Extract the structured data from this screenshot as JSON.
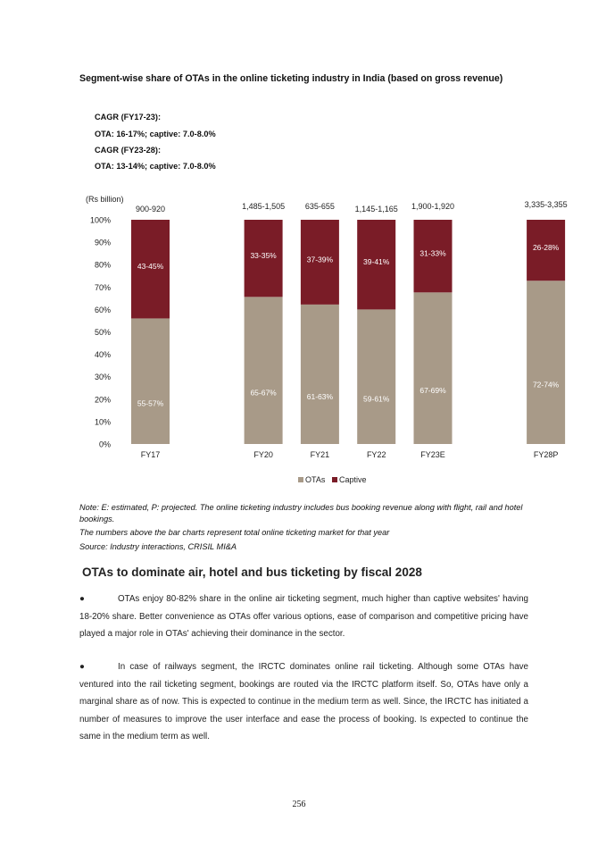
{
  "title": "Segment-wise share of OTAs in the online ticketing industry in India (based on gross revenue)",
  "cagr_lines": [
    "CAGR (FY17-23):",
    "OTA: 16-17%; captive: 7.0-8.0%",
    "CAGR (FY23-28):",
    "OTA: 13-14%; captive: 7.0-8.0%"
  ],
  "chart_data": {
    "type": "bar",
    "stacked": true,
    "unit_label": "(Rs billion)",
    "categories": [
      "FY17",
      "FY20",
      "FY21",
      "FY22",
      "FY23E",
      "FY28P"
    ],
    "totals": [
      "900-920",
      "1,485-1,505",
      "635-655",
      "1,145-1,165",
      "1,900-1,920",
      "3,335-3,355"
    ],
    "series": [
      {
        "name": "OTAs",
        "color": "#a89a88",
        "values": [
          56,
          65.6,
          62.2,
          60,
          67.6,
          72.8
        ],
        "labels": [
          "55-57%",
          "65-67%",
          "61-63%",
          "59-61%",
          "67-69%",
          "72-74%"
        ]
      },
      {
        "name": "Captive",
        "color": "#7a1c27",
        "values": [
          44,
          34.4,
          37.8,
          40,
          32.4,
          27.2
        ],
        "labels": [
          "43-45%",
          "33-35%",
          "37-39%",
          "39-41%",
          "31-33%",
          "26-28%"
        ]
      }
    ],
    "yticks": [
      "0%",
      "10%",
      "20%",
      "30%",
      "40%",
      "50%",
      "60%",
      "70%",
      "80%",
      "90%",
      "100%"
    ],
    "ylim": [
      0,
      100
    ],
    "legend": "bottom-center"
  },
  "notes": [
    "Note: E: estimated, P: projected. The online ticketing industry includes bus booking revenue along with flight, rail and hotel bookings.",
    "The numbers above the bar charts represent total online ticketing market for that year",
    "Source: Industry interactions, CRISIL MI&A"
  ],
  "heading": "OTAs to dominate air, hotel and bus ticketing by fiscal 2028",
  "bullets": [
    "OTAs enjoy 80-82% share in the online air ticketing segment, much higher than captive websites' having 18-20% share. Better convenience as OTAs offer various options, ease of comparison and competitive pricing have played a major role in OTAs' achieving their dominance in the sector.",
    "In case of railways segment, the IRCTC dominates online rail ticketing. Although some OTAs have ventured into the rail ticketing segment, bookings are routed via the IRCTC platform itself. So, OTAs have only a marginal share as of now. This is expected to continue in the medium term as well. Since, the IRCTC has initiated a number of measures to improve the user interface and ease the process of booking. Is expected to continue the same in the medium term as well."
  ],
  "page_number": "256"
}
